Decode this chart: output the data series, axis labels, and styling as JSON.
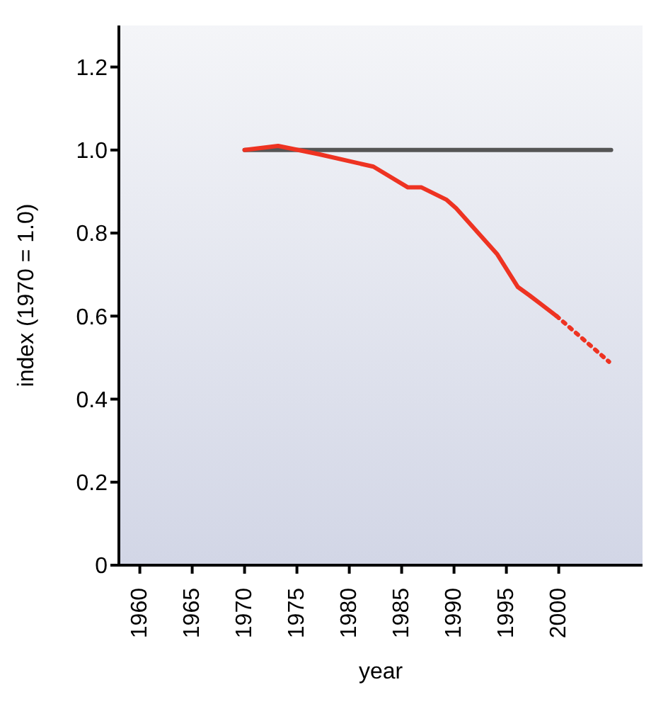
{
  "chart_data": {
    "type": "line",
    "xlabel": "year",
    "ylabel": "index (1970 = 1.0)",
    "xlim": [
      1958,
      2008
    ],
    "xticks": [
      1960,
      1965,
      1970,
      1975,
      1980,
      1985,
      1990,
      1995,
      2000
    ],
    "ylim": [
      0,
      1.3
    ],
    "yticks": [
      0,
      0.2,
      0.4,
      0.6,
      0.8,
      {
        "value": 1,
        "label": "1.0"
      },
      1.2
    ],
    "grid": false,
    "legend": false,
    "marker": "none",
    "series": [
      {
        "color": "#555555",
        "line_style": "solid",
        "x": [
          1970,
          2005
        ],
        "values": [
          1,
          1
        ]
      },
      {
        "color": "#ee3322",
        "line_style": "solid",
        "x": [
          1970,
          1973.2,
          1977.1,
          1982.3,
          1985.6,
          1986.9,
          1989.3,
          1990.2,
          1994.1,
          1996.1,
          1997.2,
          1999.8
        ],
        "values": [
          1,
          1.01,
          0.99,
          0.96,
          0.91,
          0.91,
          0.88,
          0.86,
          0.75,
          0.67,
          0.65,
          0.6
        ]
      },
      {
        "color": "#ee3322",
        "line_style": "dotted",
        "x": [
          1999.8,
          2004.8
        ],
        "values": [
          0.6,
          0.49
        ]
      }
    ]
  }
}
